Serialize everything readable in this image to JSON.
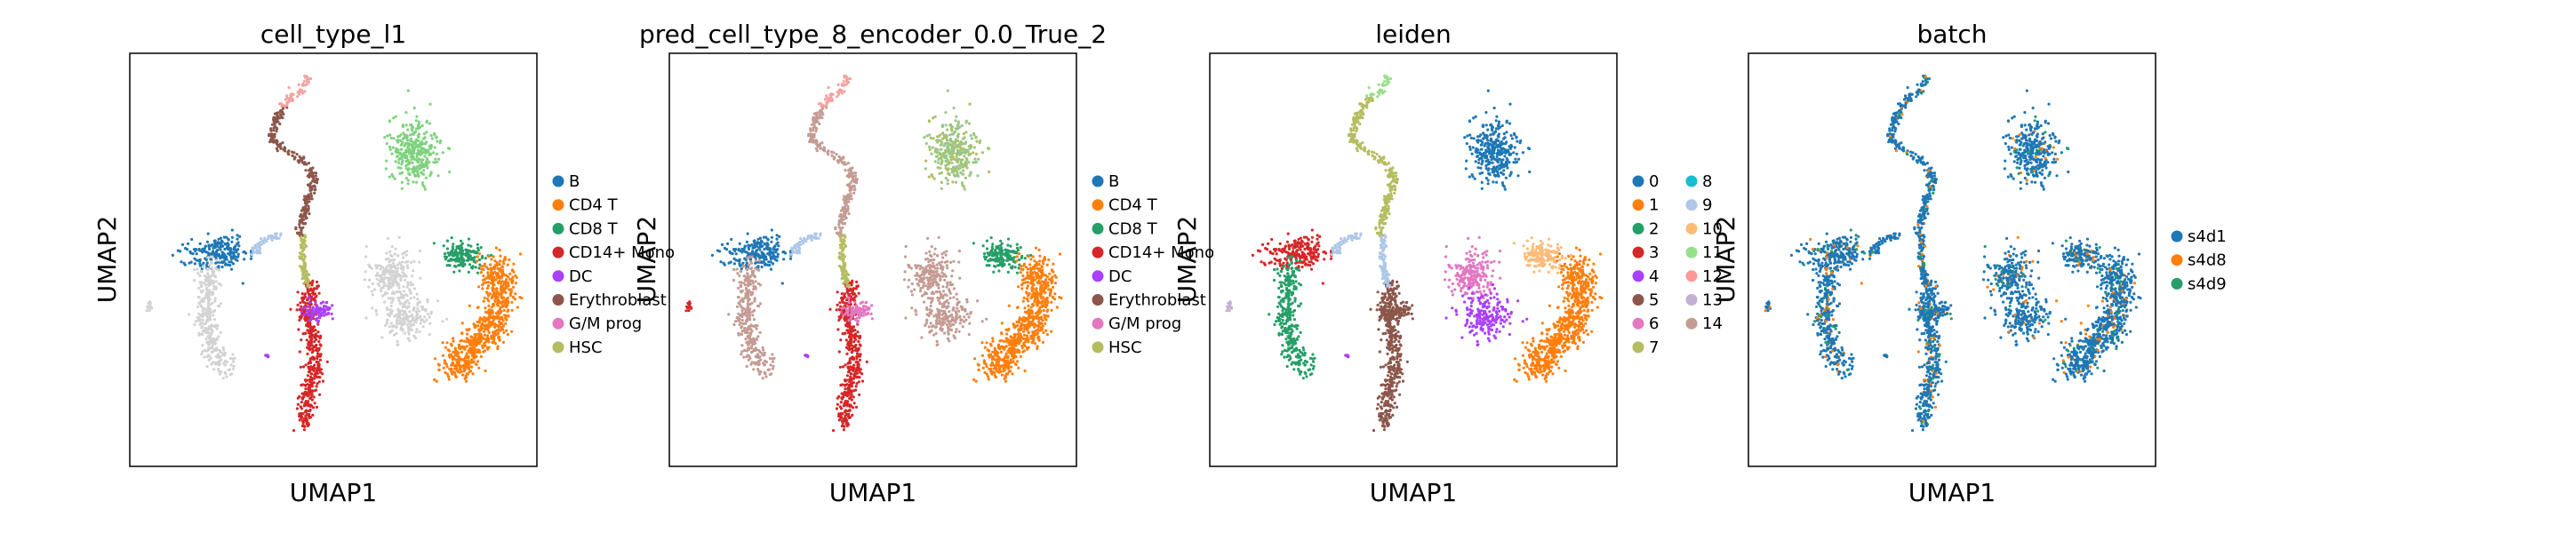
{
  "chart_data": [
    {
      "type": "scatter",
      "title": "cell_type_l1",
      "xlabel": "UMAP1",
      "ylabel": "UMAP2",
      "legend_columns": 1,
      "legend": [
        {
          "label": "B",
          "color": "#1f77b4"
        },
        {
          "label": "CD4 T",
          "color": "#ff7f0e"
        },
        {
          "label": "CD8 T",
          "color": "#279e68"
        },
        {
          "label": "CD14+ Mono",
          "color": "#d62728"
        },
        {
          "label": "DC",
          "color": "#aa40fc"
        },
        {
          "label": "Erythroblast",
          "color": "#8c564b"
        },
        {
          "label": "G/M prog",
          "color": "#e377c2"
        },
        {
          "label": "HSC",
          "color": "#b5bd61"
        }
      ]
    },
    {
      "type": "scatter",
      "title": "pred_cell_type_8_encoder_0.0_True_2",
      "xlabel": "UMAP1",
      "ylabel": "UMAP2",
      "legend_columns": 1,
      "legend": [
        {
          "label": "B",
          "color": "#1f77b4"
        },
        {
          "label": "CD4 T",
          "color": "#ff7f0e"
        },
        {
          "label": "CD8 T",
          "color": "#279e68"
        },
        {
          "label": "CD14+ Mono",
          "color": "#d62728"
        },
        {
          "label": "DC",
          "color": "#aa40fc"
        },
        {
          "label": "Erythroblast",
          "color": "#8c564b"
        },
        {
          "label": "G/M prog",
          "color": "#e377c2"
        },
        {
          "label": "HSC",
          "color": "#b5bd61"
        }
      ]
    },
    {
      "type": "scatter",
      "title": "leiden",
      "xlabel": "UMAP1",
      "ylabel": "UMAP2",
      "legend_columns": 2,
      "legend": [
        {
          "label": "0",
          "color": "#1f77b4"
        },
        {
          "label": "1",
          "color": "#ff7f0e"
        },
        {
          "label": "2",
          "color": "#279e68"
        },
        {
          "label": "3",
          "color": "#d62728"
        },
        {
          "label": "4",
          "color": "#aa40fc"
        },
        {
          "label": "5",
          "color": "#8c564b"
        },
        {
          "label": "6",
          "color": "#e377c2"
        },
        {
          "label": "7",
          "color": "#b5bd61"
        },
        {
          "label": "8",
          "color": "#17becf"
        },
        {
          "label": "9",
          "color": "#aec7e8"
        },
        {
          "label": "10",
          "color": "#ffbb78"
        },
        {
          "label": "11",
          "color": "#98df8a"
        },
        {
          "label": "12",
          "color": "#ff9896"
        },
        {
          "label": "13",
          "color": "#c5b0d5"
        },
        {
          "label": "14",
          "color": "#c49c94"
        }
      ]
    },
    {
      "type": "scatter",
      "title": "batch",
      "xlabel": "UMAP1",
      "ylabel": "UMAP2",
      "legend_columns": 1,
      "legend": [
        {
          "label": "s4d1",
          "color": "#1f77b4"
        },
        {
          "label": "s4d8",
          "color": "#ff7f0e"
        },
        {
          "label": "s4d9",
          "color": "#279e68"
        }
      ]
    }
  ]
}
